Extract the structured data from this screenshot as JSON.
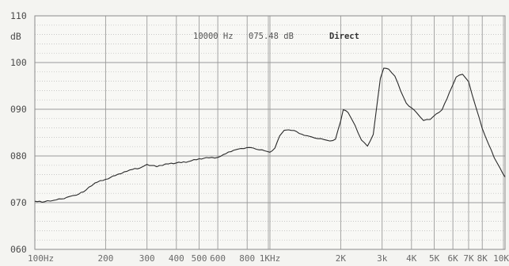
{
  "chart_data": {
    "type": "line",
    "title": "",
    "xlabel": "",
    "ylabel": "dB",
    "x_scale": "log",
    "xlim": [
      100,
      10000
    ],
    "ylim": [
      60,
      110
    ],
    "grid": true,
    "x_tick_values": [
      100,
      200,
      300,
      400,
      500,
      600,
      800,
      1000,
      2000,
      3000,
      4000,
      5000,
      6000,
      7000,
      8000,
      10000
    ],
    "x_tick_labels": [
      "100Hz",
      "200",
      "300",
      "400",
      "500",
      "600",
      "800",
      "1KHz",
      "2K",
      "3k",
      "4K",
      "5K",
      "6K",
      "7K",
      "8K",
      "10K"
    ],
    "y_tick_values": [
      60,
      70,
      80,
      90,
      100,
      110
    ],
    "y_tick_labels": [
      "060",
      "070",
      "080",
      "090",
      "100",
      "110"
    ],
    "readout": {
      "frequency": "10000 Hz",
      "level": "075.48 dB",
      "mode": "Direct"
    },
    "series": [
      {
        "x": [
          100,
          110,
          120,
          130,
          140,
          150,
          165,
          180,
          200,
          220,
          240,
          260,
          280,
          300,
          330,
          360,
          400,
          450,
          500,
          550,
          600,
          650,
          700,
          750,
          800,
          850,
          900,
          950,
          1000,
          1050,
          1100,
          1150,
          1200,
          1300,
          1400,
          1500,
          1600,
          1700,
          1800,
          1900,
          2000,
          2050,
          2150,
          2300,
          2450,
          2600,
          2750,
          2850,
          2950,
          3050,
          3200,
          3400,
          3600,
          3800,
          4000,
          4200,
          4500,
          4800,
          5100,
          5400,
          5800,
          6200,
          6600,
          7000,
          7500,
          8000,
          8500,
          9000,
          9500,
          10000
        ],
        "y": [
          70.3,
          70.2,
          70.5,
          70.8,
          71.3,
          71.6,
          72.7,
          74.2,
          75.0,
          75.8,
          76.6,
          77.1,
          77.4,
          78.2,
          77.7,
          78.3,
          78.5,
          78.8,
          79.4,
          79.6,
          79.7,
          80.5,
          81.2,
          81.6,
          81.8,
          81.7,
          81.3,
          81.1,
          80.8,
          81.7,
          84.3,
          85.5,
          85.6,
          85.2,
          84.4,
          84.1,
          83.7,
          83.5,
          83.2,
          83.6,
          87.5,
          89.9,
          89.3,
          86.6,
          83.4,
          82.1,
          84.6,
          90.8,
          96.6,
          98.8,
          98.6,
          97.1,
          93.9,
          91.3,
          90.3,
          89.3,
          87.6,
          87.8,
          89.0,
          89.9,
          93.6,
          96.9,
          97.5,
          95.9,
          90.6,
          85.9,
          82.6,
          79.6,
          77.5,
          75.5
        ]
      }
    ]
  }
}
